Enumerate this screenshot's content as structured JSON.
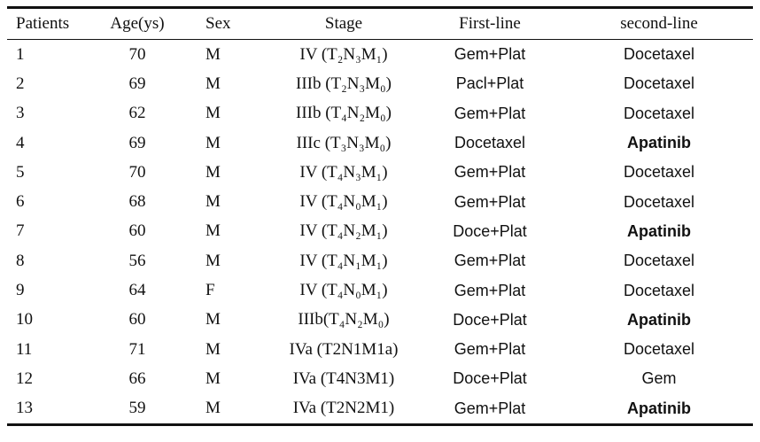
{
  "table": {
    "header": [
      "Patients",
      "Age(ys)",
      "Sex",
      "Stage",
      "First-line",
      "second-line"
    ],
    "rows": [
      [
        "1",
        "70",
        "M",
        "IV (T₂N₃M₁)",
        "Gem+Plat",
        "Docetaxel"
      ],
      [
        "2",
        "69",
        "M",
        "IIIb (T₂N₃M₀)",
        "Pacl+Plat",
        "Docetaxel"
      ],
      [
        "3",
        "62",
        "M",
        "IIIb (T₄N₂M₀)",
        "Gem+Plat",
        "Docetaxel"
      ],
      [
        "4",
        "69",
        "M",
        "IIIc (T₃N₃M₀)",
        "Docetaxel",
        "Apatinib"
      ],
      [
        "5",
        "70",
        "M",
        "IV (T₄N₃M₁)",
        "Gem+Plat",
        "Docetaxel"
      ],
      [
        "6",
        "68",
        "M",
        "IV (T₄N₀M₁)",
        "Gem+Plat",
        "Docetaxel"
      ],
      [
        "7",
        "60",
        "M",
        "IV (T₄N₂M₁)",
        "Doce+Plat",
        "Apatinib"
      ],
      [
        "8",
        "56",
        "M",
        "IV (T₄N₁M₁)",
        "Gem+Plat",
        "Docetaxel"
      ],
      [
        "9",
        "64",
        "F",
        "IV (T₄N₀M₁)",
        "Gem+Plat",
        "Docetaxel"
      ],
      [
        "10",
        "60",
        "M",
        "IIIb(T₄N₂M₀)",
        "Doce+Plat",
        "Apatinib"
      ],
      [
        "11",
        "71",
        "M",
        "IVa (T2N1M1a)",
        "Gem+Plat",
        "Docetaxel"
      ],
      [
        "12",
        "66",
        "M",
        "IVa (T4N3M1)",
        "Doce+Plat",
        "Gem"
      ],
      [
        "13",
        "59",
        "M",
        "IVa (T2N2M1)",
        "Gem+Plat",
        "Apatinib"
      ]
    ]
  }
}
